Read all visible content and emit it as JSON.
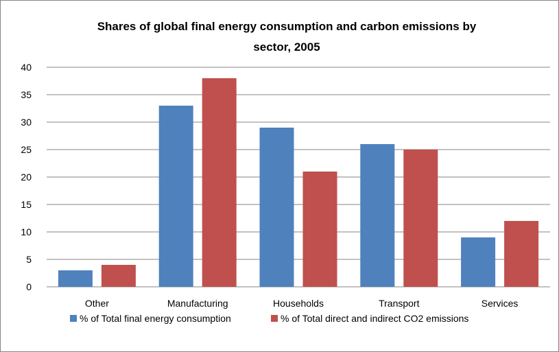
{
  "chart_data": {
    "type": "bar",
    "title_line1": "Shares of global final energy consumption and carbon emissions by",
    "title_line2": "sector, 2005",
    "xlabel": "",
    "ylabel": "",
    "ylim": [
      0,
      40
    ],
    "yticks": [
      "0",
      "5",
      "10",
      "15",
      "20",
      "25",
      "30",
      "35",
      "40"
    ],
    "grid": true,
    "legend_position": "bottom",
    "categories": [
      "Other",
      "Manufacturing",
      "Households",
      "Transport",
      "Services"
    ],
    "series": [
      {
        "name": "% of Total final energy consumption",
        "color": "#4F81BD",
        "values": [
          3,
          33,
          29,
          26,
          9
        ]
      },
      {
        "name": "% of Total direct and indirect CO2 emissions",
        "color": "#C0504D",
        "values": [
          4,
          38,
          21,
          25,
          12
        ]
      }
    ]
  }
}
